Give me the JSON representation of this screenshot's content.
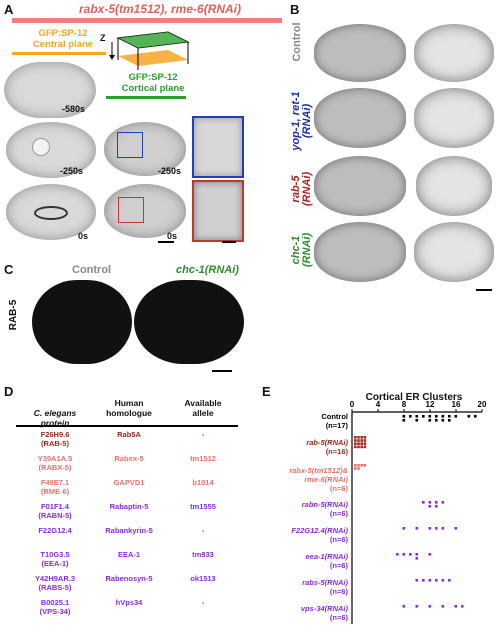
{
  "panel_a": {
    "label": "A",
    "condition": "rabx-5(tm1512), rme-6(RNAi)",
    "central_label": "GFP:SP-12\nCentral plane",
    "cortical_label": "GFP:SP-12\nCortical plane",
    "z_label": "Z",
    "times": [
      "-580s",
      "-250s",
      "0s",
      "-250s",
      "0s"
    ],
    "colors": {
      "condition_bar": "#f08080",
      "central": "#f5a623",
      "cortical": "#2ca02c",
      "zoom_blue": "#1f3fbf",
      "zoom_red": "#c0392b"
    }
  },
  "panel_b": {
    "label": "B",
    "rows": [
      {
        "label": "Control",
        "color": "#888888"
      },
      {
        "label": "yop-1, ret-1\n(RNAi)",
        "color": "#1a2fa8"
      },
      {
        "label": "rab-5\n(RNAi)",
        "color": "#b22222"
      },
      {
        "label": "chc-1\n(RNAi)",
        "color": "#2e8b2e"
      }
    ]
  },
  "panel_c": {
    "label": "C",
    "row_label": "RAB-5",
    "col_control": "Control",
    "col_rnai": "chc-1(RNAi)"
  },
  "panel_d": {
    "label": "D",
    "headers": [
      "C. elegans\nprotein",
      "Human\nhomologue",
      "Available\nallele"
    ],
    "rows": [
      {
        "protein": "F26H9.6\n(RAB-5)",
        "homologue": "Rab5A",
        "allele": "-",
        "color": "#a0281e"
      },
      {
        "protein": "Y39A1A.5\n(RABX-5)",
        "homologue": "Rabex-5",
        "allele": "tm1512",
        "color": "#e8736a"
      },
      {
        "protein": "F49E7.1\n(RME-6)",
        "homologue": "GAPVD1",
        "allele": "b1014",
        "color": "#e8736a"
      },
      {
        "protein": "F01F1.4\n(RABN-5)",
        "homologue": "Rabaptin-5",
        "allele": "tm1555",
        "color": "#8a2be2"
      },
      {
        "protein": "F22G12.4",
        "homologue": "Rabankyrin-5",
        "allele": "-",
        "color": "#8a2be2"
      },
      {
        "protein": "T10G3.5\n(EEA-1)",
        "homologue": "EEA-1",
        "allele": "tm933",
        "color": "#8a2be2"
      },
      {
        "protein": "Y42H9AR.3\n(RABS-5)",
        "homologue": "Rabenosyn-5",
        "allele": "ok1513",
        "color": "#8a2be2"
      },
      {
        "protein": "B0025.1\n(VPS-34)",
        "homologue": "hVps34",
        "allele": "-",
        "color": "#8a2be2"
      }
    ]
  },
  "panel_e": {
    "label": "E",
    "title": "Cortical ER Clusters",
    "ticks": [
      "0",
      "4",
      "8",
      "12",
      "16",
      "20"
    ],
    "groups": [
      {
        "label": "Control",
        "n": "(n=17)",
        "color": "#000000"
      },
      {
        "label": "rab-5(RNAi)",
        "n": "(n=16)",
        "color": "#a0281e"
      },
      {
        "label": "rabx-5(tm1512)&\nrme-6(RNAi)",
        "n": "(n=6)",
        "color": "#e8736a"
      },
      {
        "label": "rabn-5(RNAi)",
        "n": "(n=6)",
        "color": "#8a2be2"
      },
      {
        "label": "F22G12.4(RNAi)",
        "n": "(n=6)",
        "color": "#8a2be2"
      },
      {
        "label": "eea-1(RNAi)",
        "n": "(n=6)",
        "color": "#8a2be2"
      },
      {
        "label": "rabs-5(RNAi)",
        "n": "(n=6)",
        "color": "#8a2be2"
      },
      {
        "label": "vps-34(RNAi)",
        "n": "(n=6)",
        "color": "#8a2be2"
      }
    ]
  },
  "chart_data": {
    "type": "scatter",
    "title": "Cortical ER Clusters",
    "xlim": [
      0,
      20
    ],
    "categories": [
      "Control",
      "rab-5(RNAi)",
      "rabx-5(tm1512)&rme-6(RNAi)",
      "rabn-5(RNAi)",
      "F22G12.4(RNAi)",
      "eea-1(RNAi)",
      "rabs-5(RNAi)",
      "vps-34(RNAi)"
    ],
    "series": [
      {
        "values": [
          8,
          8,
          9,
          10,
          10,
          11,
          12,
          12,
          13,
          13,
          14,
          14,
          15,
          15,
          16,
          18,
          19
        ]
      },
      {
        "values": [
          0,
          0,
          0,
          0,
          0,
          0,
          0,
          0,
          0,
          0,
          0,
          0,
          0,
          0,
          0,
          0
        ]
      },
      {
        "values": [
          0,
          0,
          0,
          0,
          0,
          0
        ]
      },
      {
        "values": [
          11,
          12,
          12,
          13,
          13,
          14
        ]
      },
      {
        "values": [
          8,
          10,
          12,
          13,
          14,
          16
        ]
      },
      {
        "values": [
          7,
          8,
          9,
          10,
          10,
          12
        ]
      },
      {
        "values": [
          10,
          11,
          12,
          13,
          14,
          15
        ]
      },
      {
        "values": [
          8,
          10,
          12,
          14,
          16,
          17
        ]
      }
    ]
  }
}
